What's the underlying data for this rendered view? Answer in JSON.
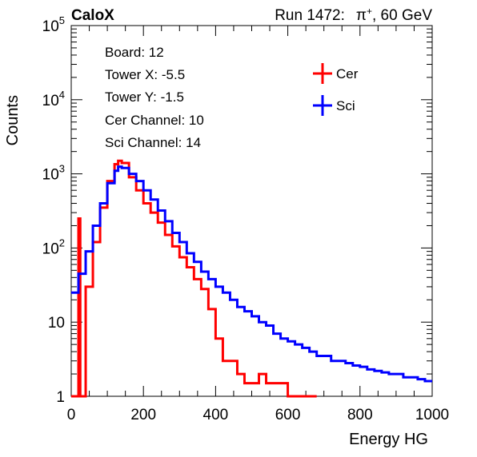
{
  "header": {
    "brand": "CaloX",
    "run_label": "Run 1472:",
    "particle": "π",
    "particle_charge": "+",
    "beam_energy": ", 60 GeV"
  },
  "info": {
    "board": "Board: 12",
    "tower_x": "Tower X: -5.5",
    "tower_y": "Tower Y: -1.5",
    "cer_channel": "Cer Channel: 10",
    "sci_channel": "Sci Channel: 14"
  },
  "chart_data": {
    "type": "line",
    "style": "step-histogram",
    "xlabel": "Energy HG",
    "ylabel": "Counts",
    "xlim": [
      0,
      1000
    ],
    "ylim": [
      1,
      100000
    ],
    "yscale": "log",
    "x_ticks": [
      0,
      200,
      400,
      600,
      800,
      1000
    ],
    "x_tick_labels": [
      "0",
      "200",
      "400",
      "600",
      "800",
      "1000"
    ],
    "y_ticks": [
      1,
      10,
      100,
      1000,
      10000,
      100000
    ],
    "y_tick_labels": [
      {
        "base": "1",
        "exp": ""
      },
      {
        "base": "10",
        "exp": ""
      },
      {
        "base": "10",
        "exp": "2"
      },
      {
        "base": "10",
        "exp": "3"
      },
      {
        "base": "10",
        "exp": "4"
      },
      {
        "base": "10",
        "exp": "5"
      }
    ],
    "grid": false,
    "legend_position": "top-right",
    "series": [
      {
        "name": "Cer",
        "color": "#ff0000",
        "x": [
          0,
          10,
          20,
          25,
          40,
          60,
          80,
          100,
          120,
          130,
          140,
          160,
          180,
          200,
          220,
          240,
          260,
          280,
          300,
          320,
          340,
          360,
          380,
          400,
          420,
          440,
          460,
          480,
          500,
          520,
          540,
          560,
          580,
          600,
          620,
          640,
          660
        ],
        "y": [
          1,
          1,
          250,
          1,
          30,
          120,
          350,
          800,
          1350,
          1500,
          1400,
          900,
          600,
          400,
          300,
          220,
          150,
          105,
          75,
          55,
          38,
          28,
          15,
          6,
          3,
          3,
          2,
          1.5,
          1.5,
          2,
          1.5,
          1.5,
          1.5,
          1,
          1,
          1,
          1
        ]
      },
      {
        "name": "Sci",
        "color": "#0000ff",
        "x": [
          0,
          20,
          40,
          60,
          80,
          100,
          120,
          130,
          140,
          160,
          180,
          200,
          220,
          240,
          260,
          280,
          300,
          320,
          340,
          360,
          380,
          400,
          420,
          440,
          460,
          480,
          500,
          520,
          540,
          560,
          580,
          600,
          620,
          640,
          660,
          680,
          700,
          720,
          740,
          760,
          780,
          800,
          820,
          840,
          860,
          880,
          900,
          920,
          940,
          960,
          980
        ],
        "y": [
          25,
          45,
          90,
          200,
          400,
          750,
          1100,
          1250,
          1200,
          1000,
          800,
          600,
          450,
          320,
          230,
          160,
          120,
          85,
          65,
          48,
          38,
          30,
          25,
          20,
          16,
          14,
          12,
          10,
          9,
          7,
          6,
          5.5,
          5,
          4.5,
          4,
          3.5,
          3.5,
          3,
          3,
          2.8,
          2.6,
          2.5,
          2.3,
          2.2,
          2.1,
          2,
          2,
          1.8,
          1.8,
          1.7,
          1.6
        ]
      }
    ]
  }
}
